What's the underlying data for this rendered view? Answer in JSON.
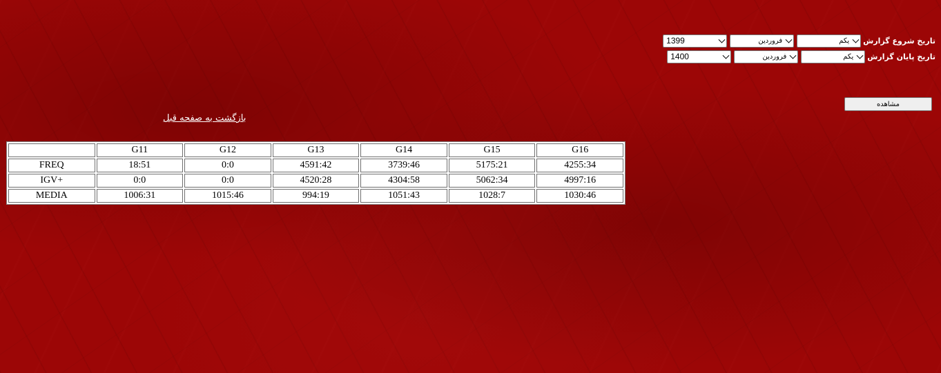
{
  "filters": {
    "start": {
      "label": "تاریخ شروع گزارش",
      "day": "یکم",
      "month": "فروردین",
      "year": "1399"
    },
    "end": {
      "label": "تاریخ پایان گزارش",
      "day": "یکم",
      "month": "فروردین",
      "year": "1400"
    }
  },
  "view_button": "مشاهده",
  "back_link": "بازگشت به صفحه قبل",
  "table": {
    "corner": "",
    "columns": [
      "G11",
      "G12",
      "G13",
      "G14",
      "G15",
      "G16"
    ],
    "rows": [
      {
        "label": "FREQ",
        "values": [
          "18:51",
          "0:0",
          "4591:42",
          "3739:46",
          "5175:21",
          "4255:34"
        ]
      },
      {
        "label": "IGV+",
        "values": [
          "0:0",
          "0:0",
          "4520:28",
          "4304:58",
          "5062:34",
          "4997:16"
        ]
      },
      {
        "label": "MEDIA",
        "values": [
          "1006:31",
          "1015:46",
          "994:19",
          "1051:43",
          "1028:7",
          "1030:46"
        ]
      }
    ]
  }
}
